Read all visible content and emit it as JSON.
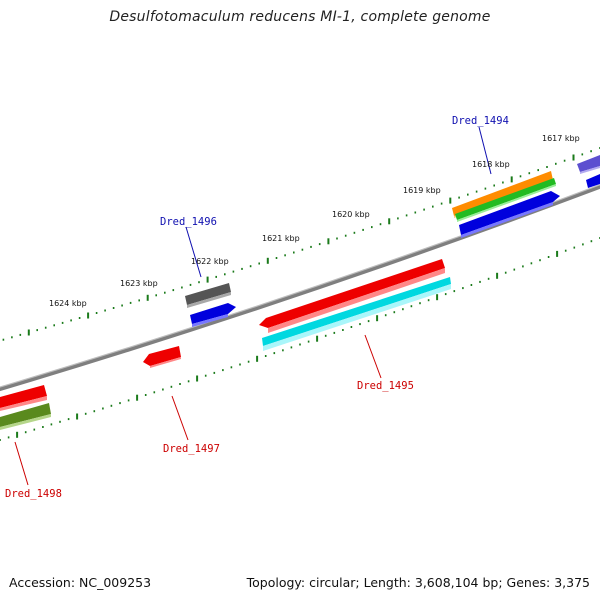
{
  "title": "Desulfotomaculum reducens MI-1, complete genome",
  "footer": {
    "accession": "Accession: NC_009253",
    "topology": "Topology: circular; Length: 3,608,104 bp; Genes: 3,375"
  },
  "colors": {
    "backbone": "#8a8a8a",
    "tick": "#1a7a1a",
    "plus_label": "#1010b0",
    "minus_label": "#cc0000"
  },
  "kbp_markers": [
    "1617 kbp",
    "1618 kbp",
    "1619 kbp",
    "1620 kbp",
    "1621 kbp",
    "1622 kbp",
    "1623 kbp",
    "1624 kbp"
  ],
  "gene_labels": [
    {
      "id": "Dred_1494",
      "strand": "plus"
    },
    {
      "id": "Dred_1496",
      "strand": "plus"
    },
    {
      "id": "Dred_1495",
      "strand": "minus"
    },
    {
      "id": "Dred_1497",
      "strand": "minus"
    },
    {
      "id": "Dred_1498",
      "strand": "minus"
    }
  ]
}
